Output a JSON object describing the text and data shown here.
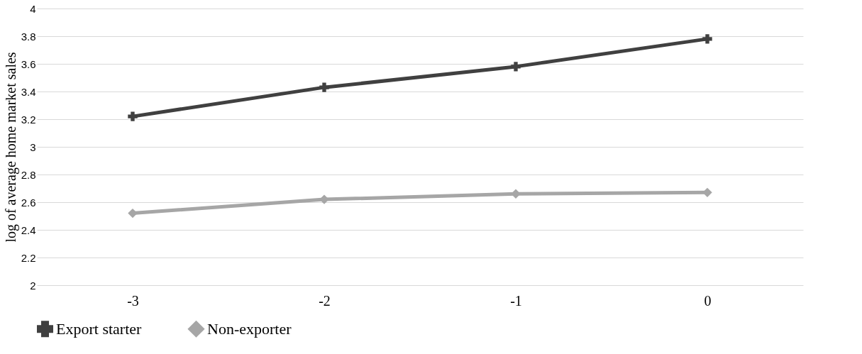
{
  "chart_data": {
    "type": "line",
    "ylabel": "log of average home market sales",
    "categories": [
      "-3",
      "-2",
      "-1",
      "0"
    ],
    "series": [
      {
        "name": "Export starter",
        "color": "#404040",
        "marker": "cross",
        "values": [
          3.22,
          3.43,
          3.58,
          3.78
        ]
      },
      {
        "name": "Non-exporter",
        "color": "#a6a6a6",
        "marker": "diamond",
        "values": [
          2.52,
          2.62,
          2.66,
          2.67
        ]
      }
    ],
    "ylim": [
      2,
      4
    ],
    "yticks": [
      2,
      2.2,
      2.4,
      2.6,
      2.8,
      3,
      3.2,
      3.4,
      3.6,
      3.8,
      4
    ],
    "grid": "y",
    "legend": "bottom",
    "line_style": "solid"
  }
}
